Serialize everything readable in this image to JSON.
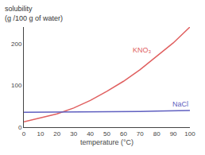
{
  "chart_data": {
    "type": "line",
    "xlabel": "temperature (°C)",
    "ylabel": [
      "solubility",
      "(g /100 g of water)"
    ],
    "x": [
      0,
      10,
      20,
      30,
      40,
      50,
      60,
      70,
      80,
      90,
      100
    ],
    "series": [
      {
        "name": "KNO₃",
        "color": "#e06060",
        "values": [
          13,
          22,
          32,
          46,
          64,
          86,
          110,
          138,
          170,
          202,
          240
        ]
      },
      {
        "name": "NaCl",
        "color": "#6060c0",
        "values": [
          35.7,
          35.8,
          36.0,
          36.3,
          36.6,
          37.0,
          37.3,
          37.8,
          38.4,
          39.0,
          39.8
        ]
      }
    ],
    "xlim": [
      0,
      100
    ],
    "ylim": [
      0,
      240
    ],
    "xticks": [
      0,
      10,
      20,
      30,
      40,
      50,
      60,
      70,
      80,
      90,
      100
    ],
    "yticks": [
      0,
      100,
      200
    ],
    "grid": false
  }
}
